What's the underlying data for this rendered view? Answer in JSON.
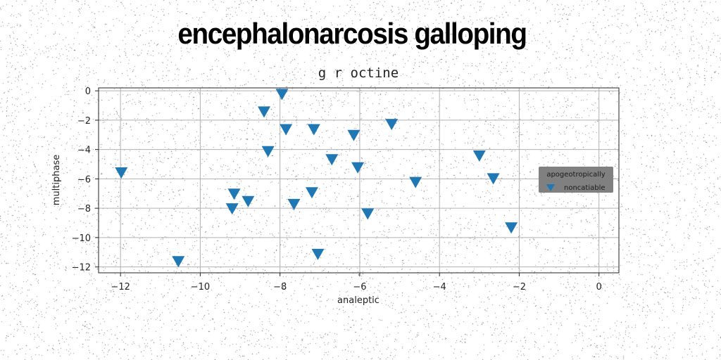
{
  "suptitle": "encephalonarcosis galloping",
  "chart_data": {
    "type": "scatter",
    "title": "g r octine",
    "xlabel": "analeptic",
    "ylabel": "multiphase",
    "xlim": [
      -12.55,
      0.5
    ],
    "ylim": [
      -12.4,
      0.2
    ],
    "xticks": [
      -12,
      -10,
      -8,
      -6,
      -4,
      -2,
      0
    ],
    "yticks": [
      0,
      -2,
      -4,
      -6,
      -8,
      -10,
      -12
    ],
    "grid": true,
    "marker": "triangle-down",
    "colors": {
      "series": "#1f77b4",
      "legend_bg": "#808080",
      "grid": "#b0b0b0"
    },
    "legend": {
      "title": "apogeotropically",
      "placement": "center-right"
    },
    "series": [
      {
        "name": "noncatiable",
        "x": [
          -11.98,
          -10.55,
          -9.2,
          -9.15,
          -8.8,
          -8.4,
          -8.3,
          -7.95,
          -7.85,
          -7.65,
          -7.2,
          -7.15,
          -7.05,
          -6.7,
          -6.15,
          -6.05,
          -5.8,
          -5.2,
          -4.6,
          -3.0,
          -2.65,
          -2.2
        ],
        "y": [
          -5.55,
          -11.6,
          -8.0,
          -7.0,
          -7.5,
          -1.4,
          -4.1,
          -0.2,
          -2.6,
          -7.7,
          -6.9,
          -2.6,
          -11.1,
          -4.65,
          -3.0,
          -5.2,
          -8.35,
          -2.25,
          -6.2,
          -4.4,
          -5.95,
          -9.3
        ]
      }
    ]
  }
}
